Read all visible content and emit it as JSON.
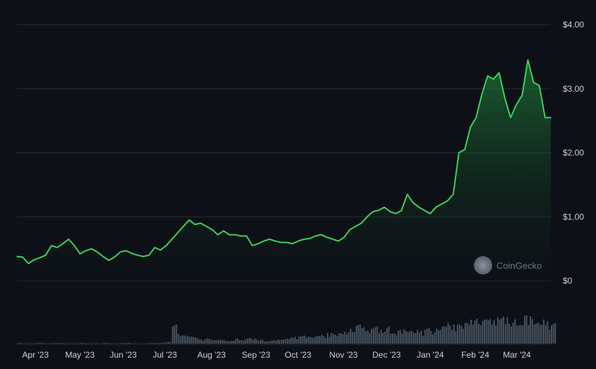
{
  "chart_data": {
    "type": "area",
    "y_tick_labels": [
      "$0",
      "$1.00",
      "$2.00",
      "$3.00",
      "$4.00"
    ],
    "y_tick_values": [
      0,
      1,
      2,
      3,
      4
    ],
    "ylim": [
      0,
      4
    ],
    "x_tick_labels": [
      "Apr '23",
      "May '23",
      "Jun '23",
      "Jul '23",
      "Aug '23",
      "Sep '23",
      "Oct '23",
      "Nov '23",
      "Dec '23",
      "Jan '24",
      "Feb '24",
      "Mar '24"
    ],
    "x": [
      "2023-03-20",
      "2023-03-24",
      "2023-03-28",
      "2023-04-01",
      "2023-04-05",
      "2023-04-09",
      "2023-04-13",
      "2023-04-17",
      "2023-04-21",
      "2023-04-25",
      "2023-04-29",
      "2023-05-03",
      "2023-05-07",
      "2023-05-11",
      "2023-05-15",
      "2023-05-19",
      "2023-05-23",
      "2023-05-27",
      "2023-05-31",
      "2023-06-04",
      "2023-06-08",
      "2023-06-12",
      "2023-06-16",
      "2023-06-20",
      "2023-06-24",
      "2023-06-28",
      "2023-07-02",
      "2023-07-06",
      "2023-07-10",
      "2023-07-14",
      "2023-07-18",
      "2023-07-22",
      "2023-07-26",
      "2023-07-30",
      "2023-08-03",
      "2023-08-07",
      "2023-08-11",
      "2023-08-15",
      "2023-08-19",
      "2023-08-23",
      "2023-08-27",
      "2023-08-31",
      "2023-09-04",
      "2023-09-08",
      "2023-09-12",
      "2023-09-16",
      "2023-09-20",
      "2023-09-24",
      "2023-09-28",
      "2023-10-02",
      "2023-10-06",
      "2023-10-10",
      "2023-10-14",
      "2023-10-18",
      "2023-10-22",
      "2023-10-26",
      "2023-10-30",
      "2023-11-03",
      "2023-11-07",
      "2023-11-11",
      "2023-11-15",
      "2023-11-19",
      "2023-11-23",
      "2023-11-27",
      "2023-12-01",
      "2023-12-05",
      "2023-12-09",
      "2023-12-13",
      "2023-12-17",
      "2023-12-21",
      "2023-12-25",
      "2023-12-29",
      "2024-01-02",
      "2024-01-06",
      "2024-01-10",
      "2024-01-14",
      "2024-01-18",
      "2024-01-22",
      "2024-01-26",
      "2024-01-30",
      "2024-02-03",
      "2024-02-07",
      "2024-02-11",
      "2024-02-15",
      "2024-02-19",
      "2024-02-23",
      "2024-02-27",
      "2024-03-02",
      "2024-03-06",
      "2024-03-10",
      "2024-03-14",
      "2024-03-18",
      "2024-03-22",
      "2024-03-26"
    ],
    "series": [
      {
        "values": [
          0.38,
          0.37,
          0.27,
          0.33,
          0.36,
          0.4,
          0.55,
          0.52,
          0.58,
          0.65,
          0.55,
          0.42,
          0.47,
          0.5,
          0.45,
          0.38,
          0.32,
          0.37,
          0.45,
          0.47,
          0.43,
          0.4,
          0.38,
          0.4,
          0.52,
          0.48,
          0.55,
          0.65,
          0.75,
          0.85,
          0.95,
          0.88,
          0.9,
          0.85,
          0.8,
          0.72,
          0.78,
          0.72,
          0.72,
          0.7,
          0.7,
          0.55,
          0.58,
          0.62,
          0.65,
          0.62,
          0.6,
          0.6,
          0.58,
          0.62,
          0.65,
          0.66,
          0.7,
          0.72,
          0.68,
          0.65,
          0.62,
          0.68,
          0.8,
          0.85,
          0.9,
          1.0,
          1.08,
          1.1,
          1.15,
          1.08,
          1.05,
          1.1,
          1.35,
          1.22,
          1.15,
          1.1,
          1.05,
          1.15,
          1.2,
          1.25,
          1.35,
          2.0,
          2.05,
          2.4,
          2.55,
          2.92,
          3.2,
          3.15,
          3.25,
          2.85,
          2.55,
          2.75,
          2.9,
          3.45,
          3.1,
          3.05,
          2.55,
          2.55
        ]
      }
    ],
    "volume": [
      0.02,
      0.01,
      0.01,
      0.02,
      0.02,
      0.01,
      0.02,
      0.02,
      0.01,
      0.01,
      0.01,
      0.02,
      0.01,
      0.01,
      0.01,
      0.02,
      0.01,
      0.01,
      0.02,
      0.02,
      0.01,
      0.01,
      0.01,
      0.02,
      0.02,
      0.03,
      0.05,
      0.55,
      0.3,
      0.25,
      0.2,
      0.18,
      0.12,
      0.15,
      0.1,
      0.12,
      0.1,
      0.08,
      0.15,
      0.12,
      0.18,
      0.15,
      0.12,
      0.1,
      0.1,
      0.12,
      0.15,
      0.18,
      0.2,
      0.22,
      0.25,
      0.2,
      0.22,
      0.25,
      0.3,
      0.28,
      0.3,
      0.35,
      0.45,
      0.55,
      0.5,
      0.45,
      0.55,
      0.4,
      0.5,
      0.45,
      0.4,
      0.42,
      0.45,
      0.4,
      0.38,
      0.45,
      0.4,
      0.45,
      0.5,
      0.6,
      0.55,
      0.55,
      0.6,
      0.7,
      0.75,
      0.7,
      0.75,
      0.8,
      0.85,
      0.75,
      0.7,
      0.8,
      0.85,
      0.8,
      0.75,
      0.7,
      0.65,
      0.6
    ],
    "grid": true,
    "legend": false
  },
  "watermark": "CoinGecko",
  "colors": {
    "background": "#0d1117",
    "line": "#3ecf5f",
    "grid": "#2a2f36",
    "volume": "#4b5563",
    "text": "#c9d1d9"
  }
}
